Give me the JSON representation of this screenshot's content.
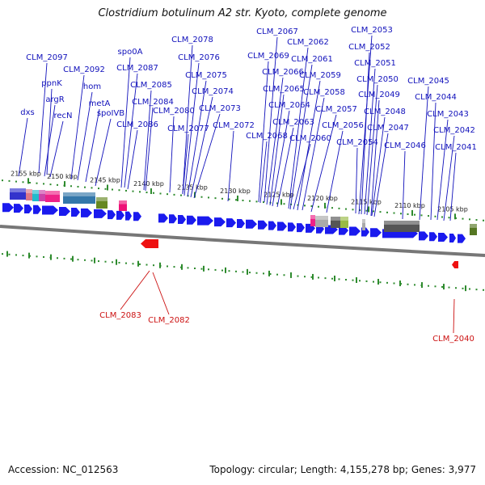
{
  "title": "Clostridium botulinum A2 str. Kyoto, complete genome",
  "footer": {
    "accession": "Accession: NC_012563",
    "summary": "Topology: circular; Length: 4,155,278 bp; Genes: 3,977"
  },
  "colors": {
    "forward_gene": "#1a1aee",
    "reverse_gene": "#ee1111",
    "forward_label": "#1010bb",
    "reverse_label": "#cc1111",
    "backbone": "#777777",
    "tick": "#2e8b2e"
  },
  "scale_labels": [
    "2155 kbp",
    "2150 kbp",
    "2145 kbp",
    "2140 kbp",
    "2135 kbp",
    "2130 kbp",
    "2125 kbp",
    "2120 kbp",
    "2115 kbp",
    "2110 kbp",
    "2105 kbp"
  ],
  "forward_genes": [
    "dxs",
    "ppnK",
    "argR",
    "recN",
    "CLM_2097",
    "CLM_2092",
    "hom",
    "metA",
    "spoIVB",
    "spo0A",
    "CLM_2087",
    "CLM_2086",
    "CLM_2085",
    "CLM_2084",
    "CLM_2080",
    "CLM_2078",
    "CLM_2077",
    "CLM_2076",
    "CLM_2075",
    "CLM_2074",
    "CLM_2073",
    "CLM_2072",
    "CLM_2069",
    "CLM_2068",
    "CLM_2067",
    "CLM_2066",
    "CLM_2065",
    "CLM_2064",
    "CLM_2063",
    "CLM_2062",
    "CLM_2061",
    "CLM_2060",
    "CLM_2059",
    "CLM_2058",
    "CLM_2057",
    "CLM_2056",
    "CLM_2054",
    "CLM_2053",
    "CLM_2052",
    "CLM_2051",
    "CLM_2050",
    "CLM_2049",
    "CLM_2048",
    "CLM_2047",
    "CLM_2046",
    "CLM_2045",
    "CLM_2044",
    "CLM_2043",
    "CLM_2042",
    "CLM_2041"
  ],
  "reverse_genes": [
    "CLM_2083",
    "CLM_2082",
    "CLM_2040"
  ]
}
